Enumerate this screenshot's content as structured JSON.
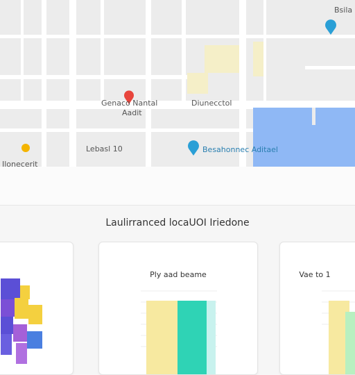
{
  "map": {
    "labels": [
      "Bsila",
      "Genaco Nantal",
      "Aadit",
      "Diunecctol",
      "Lebasl 10",
      "Besahonnec Aditael",
      "Ilonecerit"
    ]
  },
  "heading": "Laulirranced locaUOI Iriedone",
  "cards": [
    {
      "title": "Ply aad beame"
    },
    {
      "title": "Vae to 1"
    }
  ]
}
